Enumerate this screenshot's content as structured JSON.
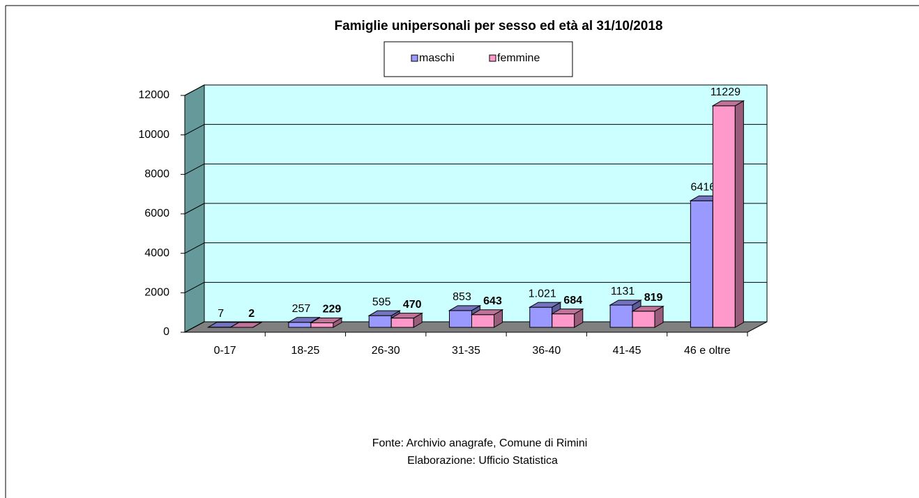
{
  "chart_data": {
    "type": "bar3d",
    "title": "Famiglie unipersonali per sesso ed età al 31/10/2018",
    "categories": [
      "0-17",
      "18-25",
      "26-30",
      "31-35",
      "36-40",
      "41-45",
      "46 e oltre"
    ],
    "series": [
      {
        "name": "maschi",
        "color": "#9999ff",
        "values": [
          7,
          257,
          595,
          853,
          1021,
          1131,
          6416
        ],
        "value_labels": [
          "7",
          "257",
          "595",
          "853",
          "1.021",
          "1131",
          "6416"
        ]
      },
      {
        "name": "femmine",
        "color": "#ff99cc",
        "values": [
          2,
          229,
          470,
          643,
          684,
          819,
          11229
        ]
      }
    ],
    "ylim": [
      0,
      12000
    ],
    "yticks": [
      0,
      2000,
      4000,
      6000,
      8000,
      10000,
      12000
    ],
    "grid": true,
    "notes": [
      "Fonte: Archivio anagrafe,  Comune  di Rimini",
      "Elaborazione:  Ufficio Statistica"
    ]
  }
}
